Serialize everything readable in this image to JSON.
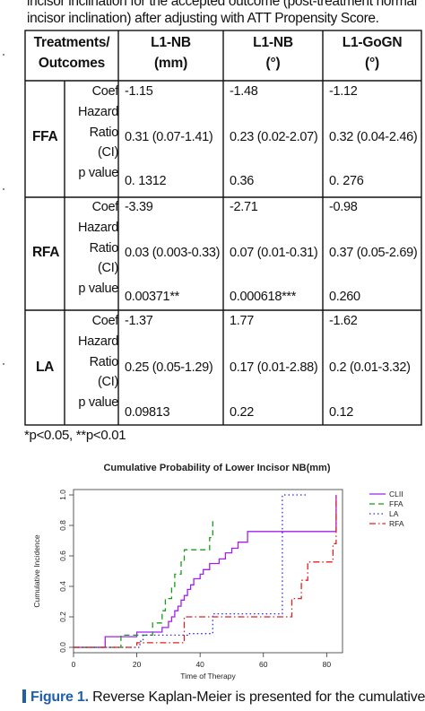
{
  "intro": {
    "line1": "incisor inclination for the accepted outcome (post-treatment normal",
    "line2": "incisor inclination) after adjusting with ATT Propensity Score."
  },
  "table": {
    "header": {
      "col0_line1": "Treatments/",
      "col0_line2": "Outcomes",
      "col1_line1": "L1-NB",
      "col1_line2": "(mm)",
      "col2_line1": "L1-NB",
      "col2_line2": "(°)",
      "col3_line1": "L1-GoGN",
      "col3_line2": "(°)"
    },
    "row_labels": [
      "Coef",
      "Hazard",
      "Ratio",
      "(CI)",
      "p value"
    ],
    "groups": [
      {
        "name": "FFA",
        "coef": [
          "-1.15",
          "-1.48",
          "-1.12"
        ],
        "hr": [
          "0.31 (0.07-1.41)",
          "0.23 (0.02-2.07)",
          "0.32 (0.04-2.46)"
        ],
        "p": [
          "0. 1312",
          "0.36",
          "0. 276"
        ]
      },
      {
        "name": "RFA",
        "coef": [
          "-3.39",
          "-2.71",
          "-0.98"
        ],
        "hr": [
          "0.03 (0.003-0.33)",
          "0.07 (0.01-0.31)",
          "0.37 (0.05-2.69)"
        ],
        "p": [
          "0.00371**",
          "0.000618***",
          "0.260"
        ]
      },
      {
        "name": "LA",
        "coef": [
          "-1.37",
          "1.77",
          "-1.62"
        ],
        "hr": [
          "0.25 (0.05-1.29)",
          "0.17 (0.01-2.88)",
          "0.2 (0.01-3.32)"
        ],
        "p": [
          "0.09813",
          "0.22",
          "0.12"
        ]
      }
    ]
  },
  "footnote": "*p<0.05, **p<0.01",
  "chart_data": {
    "type": "line",
    "title": "Cumulative Probability of Lower Incisor NB(mm)",
    "xlabel": "Time of Therapy",
    "ylabel": "Cumulative Incidence",
    "xlim": [
      0,
      85
    ],
    "ylim": [
      0,
      1.0
    ],
    "xticks": [
      "0",
      "20",
      "40",
      "60",
      "80"
    ],
    "yticks": [
      "0.0",
      "0.2",
      "0.4",
      "0.6",
      "0.8",
      "1.0"
    ],
    "grid": false,
    "legend": "right",
    "series": [
      {
        "name": "CLII",
        "color": "#a020f0",
        "dash": "",
        "points": [
          [
            0,
            0
          ],
          [
            10,
            0
          ],
          [
            10,
            0.07
          ],
          [
            20,
            0.07
          ],
          [
            20,
            0.1
          ],
          [
            28,
            0.1
          ],
          [
            28,
            0.13
          ],
          [
            30,
            0.13
          ],
          [
            30,
            0.17
          ],
          [
            31,
            0.17
          ],
          [
            31,
            0.2
          ],
          [
            32,
            0.2
          ],
          [
            32,
            0.24
          ],
          [
            33,
            0.24
          ],
          [
            33,
            0.27
          ],
          [
            34,
            0.27
          ],
          [
            34,
            0.31
          ],
          [
            35,
            0.31
          ],
          [
            35,
            0.34
          ],
          [
            36,
            0.34
          ],
          [
            36,
            0.38
          ],
          [
            37,
            0.38
          ],
          [
            37,
            0.41
          ],
          [
            38,
            0.41
          ],
          [
            38,
            0.45
          ],
          [
            40,
            0.45
          ],
          [
            40,
            0.48
          ],
          [
            41,
            0.48
          ],
          [
            41,
            0.51
          ],
          [
            43,
            0.51
          ],
          [
            43,
            0.55
          ],
          [
            46,
            0.55
          ],
          [
            46,
            0.58
          ],
          [
            48,
            0.58
          ],
          [
            48,
            0.62
          ],
          [
            50,
            0.62
          ],
          [
            50,
            0.65
          ],
          [
            52,
            0.65
          ],
          [
            52,
            0.69
          ],
          [
            55,
            0.69
          ],
          [
            55,
            0.76
          ],
          [
            83,
            0.76
          ],
          [
            83,
            1.0
          ]
        ]
      },
      {
        "name": "FFA",
        "color": "#1a9a1a",
        "dash": "6,4",
        "points": [
          [
            0,
            0
          ],
          [
            15,
            0
          ],
          [
            15,
            0.08
          ],
          [
            25,
            0.08
          ],
          [
            25,
            0.16
          ],
          [
            28,
            0.16
          ],
          [
            28,
            0.24
          ],
          [
            29,
            0.24
          ],
          [
            29,
            0.32
          ],
          [
            31,
            0.32
          ],
          [
            31,
            0.4
          ],
          [
            32,
            0.4
          ],
          [
            32,
            0.48
          ],
          [
            34,
            0.48
          ],
          [
            34,
            0.56
          ],
          [
            35,
            0.56
          ],
          [
            35,
            0.64
          ],
          [
            43,
            0.64
          ],
          [
            43,
            0.72
          ],
          [
            44,
            0.72
          ],
          [
            44,
            0.84
          ]
        ]
      },
      {
        "name": "LA",
        "color": "#2a2ae0",
        "dash": "1.5,3",
        "points": [
          [
            0,
            0
          ],
          [
            21,
            0
          ],
          [
            21,
            0.04
          ],
          [
            22,
            0.04
          ],
          [
            22,
            0.08
          ],
          [
            36,
            0.08
          ],
          [
            36,
            0.09
          ],
          [
            44,
            0.09
          ],
          [
            44,
            0.22
          ],
          [
            66,
            0.22
          ],
          [
            66,
            1.0
          ],
          [
            74,
            1.0
          ]
        ]
      },
      {
        "name": "RFA",
        "color": "#e02020",
        "dash": "7,3,1.5,3",
        "points": [
          [
            0,
            0
          ],
          [
            20,
            0
          ],
          [
            20,
            0.03
          ],
          [
            35,
            0.03
          ],
          [
            35,
            0.2
          ],
          [
            69,
            0.2
          ],
          [
            69,
            0.32
          ],
          [
            72,
            0.32
          ],
          [
            72,
            0.44
          ],
          [
            74,
            0.44
          ],
          [
            74,
            0.56
          ],
          [
            82,
            0.56
          ],
          [
            82,
            0.68
          ],
          [
            83,
            0.68
          ],
          [
            83,
            1.0
          ]
        ]
      }
    ]
  },
  "caption": {
    "label": "Figure 1.",
    "text": " Reverse Kaplan-Meier is presented for the cumulative"
  }
}
